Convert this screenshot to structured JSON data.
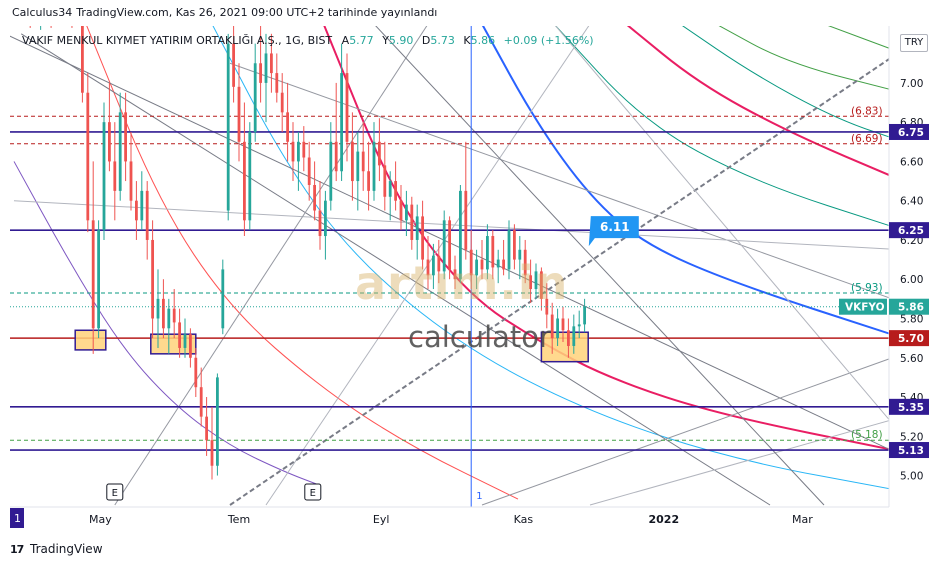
{
  "header": {
    "publish_author": "Calculus34",
    "publish_line": "TradingView.com, Kas 26, 2021 09:00 UTC+2 tarihinde yayınlandı"
  },
  "legend": {
    "symbol": "VAKIF MENKUL KIYMET YATIRIM ORTAKLIĞI A.Ş., 1G, BIST",
    "open_label": "A",
    "open": "5.77",
    "high_label": "Y",
    "high": "5.90",
    "low_label": "D",
    "low": "5.73",
    "close_label": "K",
    "close": "5.86",
    "change": "+0.09 (+1.56%)"
  },
  "currency": "TRY",
  "footer": {
    "brand": "TradingView"
  },
  "watermark": {
    "line1": "artım.in",
    "line2": "calculator"
  },
  "colors": {
    "up": "#26a69a",
    "down": "#ef5350",
    "level": "#311b92",
    "level_red": "#b71c1c",
    "fib_red": "#e91e63",
    "fib_blue": "#2962ff",
    "fib_teal": "#089981",
    "fib_green": "#43a047"
  },
  "chart_data": {
    "type": "candlestick",
    "currency": "TRY",
    "ylim": [
      4.85,
      7.3
    ],
    "y_ticks": [
      5.0,
      5.2,
      5.4,
      5.6,
      5.8,
      6.0,
      6.2,
      6.4,
      6.6,
      6.8,
      7.0,
      7.2
    ],
    "x_ticks": [
      {
        "label": "1",
        "x": 0.0
      },
      {
        "label": "May",
        "x": 24.0
      },
      {
        "label": "Tem",
        "x": 62.5
      },
      {
        "label": "Eyl",
        "x": 102.0
      },
      {
        "label": "Kas",
        "x": 141.5
      },
      {
        "label": "2022",
        "x": 180.5
      },
      {
        "label": "Mar",
        "x": 219.0
      }
    ],
    "x_range": [
      0,
      247
    ],
    "levels": [
      {
        "value": 6.75,
        "label": "6.75",
        "style": "solid",
        "color": "#311b92"
      },
      {
        "value": 6.25,
        "label": "6.25",
        "style": "solid",
        "color": "#311b92"
      },
      {
        "value": 5.7,
        "label": "5.70",
        "style": "solid",
        "color": "#b71c1c"
      },
      {
        "value": 5.35,
        "label": "5.35",
        "style": "solid",
        "color": "#311b92"
      },
      {
        "value": 5.13,
        "label": "5.13",
        "style": "solid",
        "color": "#311b92"
      },
      {
        "value": 6.83,
        "label": "(6.83)",
        "style": "dashed",
        "color": "#b71c1c"
      },
      {
        "value": 6.69,
        "label": "(6.69)",
        "style": "dashed",
        "color": "#b71c1c"
      },
      {
        "value": 5.93,
        "label": "(5.93)",
        "style": "dashed",
        "color": "#089981"
      },
      {
        "value": 5.18,
        "label": "(5.18)",
        "style": "dashed",
        "color": "#43a047"
      }
    ],
    "last_price": {
      "label": "VKFYO",
      "value": 5.86
    },
    "callout": {
      "label": "6.11",
      "x": 168,
      "y": 6.25
    },
    "boxes": [
      {
        "x0": 17,
        "x1": 25.5,
        "y0": 5.64,
        "y1": 5.74
      },
      {
        "x0": 38,
        "x1": 50.5,
        "y0": 5.62,
        "y1": 5.72
      },
      {
        "x0": 146.5,
        "x1": 159.5,
        "y0": 5.58,
        "y1": 5.73
      }
    ],
    "event_markers": [
      {
        "label": "E",
        "x": 28
      },
      {
        "label": "E",
        "x": 83
      }
    ],
    "vertical_marker": {
      "label": "1",
      "x": 127
    },
    "candles": [
      {
        "x": 4.5,
        "o": 7.35,
        "h": 7.35,
        "l": 7.28,
        "c": 7.31
      },
      {
        "x": 7.4,
        "o": 7.29,
        "h": 7.34,
        "l": 7.27,
        "c": 7.32
      },
      {
        "x": 10.3,
        "o": 7.33,
        "h": 7.35,
        "l": 7.28,
        "c": 7.3
      },
      {
        "x": 13.2,
        "o": 7.31,
        "h": 7.36,
        "l": 7.29,
        "c": 7.34
      },
      {
        "x": 16.1,
        "o": 7.34,
        "h": 7.35,
        "l": 7.28,
        "c": 7.3
      },
      {
        "x": 19.0,
        "o": 7.3,
        "h": 7.33,
        "l": 6.9,
        "c": 6.95
      },
      {
        "x": 20.5,
        "o": 6.95,
        "h": 7.05,
        "l": 6.24,
        "c": 6.3
      },
      {
        "x": 22.0,
        "o": 6.3,
        "h": 6.6,
        "l": 5.62,
        "c": 5.75
      },
      {
        "x": 23.5,
        "o": 5.75,
        "h": 6.3,
        "l": 5.7,
        "c": 6.25
      },
      {
        "x": 25.0,
        "o": 6.25,
        "h": 6.9,
        "l": 6.2,
        "c": 6.8
      },
      {
        "x": 26.5,
        "o": 6.8,
        "h": 7.0,
        "l": 6.55,
        "c": 6.6
      },
      {
        "x": 28.0,
        "o": 6.6,
        "h": 6.8,
        "l": 6.3,
        "c": 6.45
      },
      {
        "x": 29.5,
        "o": 6.45,
        "h": 6.95,
        "l": 6.4,
        "c": 6.85
      },
      {
        "x": 31.0,
        "o": 6.85,
        "h": 6.95,
        "l": 6.5,
        "c": 6.6
      },
      {
        "x": 32.5,
        "o": 6.6,
        "h": 6.75,
        "l": 6.35,
        "c": 6.4
      },
      {
        "x": 34.0,
        "o": 6.4,
        "h": 6.5,
        "l": 6.2,
        "c": 6.3
      },
      {
        "x": 35.5,
        "o": 6.3,
        "h": 6.55,
        "l": 6.25,
        "c": 6.45
      },
      {
        "x": 37.0,
        "o": 6.45,
        "h": 6.5,
        "l": 6.1,
        "c": 6.2
      },
      {
        "x": 38.5,
        "o": 6.2,
        "h": 6.3,
        "l": 5.7,
        "c": 5.8
      },
      {
        "x": 40.0,
        "o": 5.8,
        "h": 6.05,
        "l": 5.65,
        "c": 5.9
      },
      {
        "x": 41.5,
        "o": 5.9,
        "h": 6.0,
        "l": 5.7,
        "c": 5.75
      },
      {
        "x": 43.0,
        "o": 5.75,
        "h": 5.9,
        "l": 5.62,
        "c": 5.85
      },
      {
        "x": 44.5,
        "o": 5.85,
        "h": 5.95,
        "l": 5.7,
        "c": 5.78
      },
      {
        "x": 46.0,
        "o": 5.78,
        "h": 5.85,
        "l": 5.6,
        "c": 5.65
      },
      {
        "x": 47.5,
        "o": 5.65,
        "h": 5.8,
        "l": 5.6,
        "c": 5.72
      },
      {
        "x": 49.0,
        "o": 5.72,
        "h": 5.75,
        "l": 5.55,
        "c": 5.6
      },
      {
        "x": 50.5,
        "o": 5.6,
        "h": 5.65,
        "l": 5.4,
        "c": 5.45
      },
      {
        "x": 52.0,
        "o": 5.45,
        "h": 5.55,
        "l": 5.25,
        "c": 5.3
      },
      {
        "x": 53.5,
        "o": 5.3,
        "h": 5.4,
        "l": 5.1,
        "c": 5.18
      },
      {
        "x": 55.0,
        "o": 5.18,
        "h": 5.35,
        "l": 4.98,
        "c": 5.05
      },
      {
        "x": 56.5,
        "o": 5.05,
        "h": 5.52,
        "l": 5.0,
        "c": 5.5
      },
      {
        "x": 58.0,
        "o": 5.75,
        "h": 6.1,
        "l": 5.72,
        "c": 6.05
      },
      {
        "x": 59.5,
        "o": 6.35,
        "h": 7.25,
        "l": 6.3,
        "c": 7.2
      },
      {
        "x": 61.0,
        "o": 7.2,
        "h": 7.3,
        "l": 6.9,
        "c": 6.98
      },
      {
        "x": 62.5,
        "o": 6.98,
        "h": 7.1,
        "l": 6.6,
        "c": 6.7
      },
      {
        "x": 64.0,
        "o": 6.7,
        "h": 6.9,
        "l": 6.22,
        "c": 6.3
      },
      {
        "x": 65.5,
        "o": 6.3,
        "h": 6.8,
        "l": 6.25,
        "c": 6.75
      },
      {
        "x": 67.0,
        "o": 6.75,
        "h": 7.2,
        "l": 6.7,
        "c": 7.1
      },
      {
        "x": 68.5,
        "o": 7.1,
        "h": 7.3,
        "l": 6.9,
        "c": 7.0
      },
      {
        "x": 70.0,
        "o": 7.0,
        "h": 7.25,
        "l": 6.8,
        "c": 7.15
      },
      {
        "x": 71.5,
        "o": 7.15,
        "h": 7.25,
        "l": 6.95,
        "c": 7.05
      },
      {
        "x": 73.0,
        "o": 7.05,
        "h": 7.15,
        "l": 6.9,
        "c": 6.95
      },
      {
        "x": 74.5,
        "o": 6.95,
        "h": 7.05,
        "l": 6.75,
        "c": 6.85
      },
      {
        "x": 76.0,
        "o": 6.85,
        "h": 7.0,
        "l": 6.6,
        "c": 6.7
      },
      {
        "x": 77.5,
        "o": 6.7,
        "h": 6.8,
        "l": 6.5,
        "c": 6.6
      },
      {
        "x": 79.0,
        "o": 6.6,
        "h": 6.75,
        "l": 6.45,
        "c": 6.7
      },
      {
        "x": 80.5,
        "o": 6.7,
        "h": 6.78,
        "l": 6.55,
        "c": 6.62
      },
      {
        "x": 82.0,
        "o": 6.62,
        "h": 6.7,
        "l": 6.4,
        "c": 6.48
      },
      {
        "x": 83.5,
        "o": 6.48,
        "h": 6.6,
        "l": 6.3,
        "c": 6.35
      },
      {
        "x": 85.0,
        "o": 6.35,
        "h": 6.5,
        "l": 6.15,
        "c": 6.22
      },
      {
        "x": 86.5,
        "o": 6.22,
        "h": 6.45,
        "l": 6.1,
        "c": 6.4
      },
      {
        "x": 88.0,
        "o": 6.4,
        "h": 6.8,
        "l": 6.35,
        "c": 6.7
      },
      {
        "x": 89.5,
        "o": 6.7,
        "h": 7.0,
        "l": 6.5,
        "c": 6.55
      },
      {
        "x": 91.0,
        "o": 6.55,
        "h": 7.2,
        "l": 6.5,
        "c": 7.05
      },
      {
        "x": 92.5,
        "o": 7.05,
        "h": 7.15,
        "l": 6.6,
        "c": 6.7
      },
      {
        "x": 94.0,
        "o": 6.7,
        "h": 6.85,
        "l": 6.4,
        "c": 6.5
      },
      {
        "x": 95.5,
        "o": 6.5,
        "h": 6.75,
        "l": 6.35,
        "c": 6.65
      },
      {
        "x": 97.0,
        "o": 6.65,
        "h": 6.8,
        "l": 6.45,
        "c": 6.55
      },
      {
        "x": 98.5,
        "o": 6.55,
        "h": 6.7,
        "l": 6.35,
        "c": 6.45
      },
      {
        "x": 100.0,
        "o": 6.45,
        "h": 6.8,
        "l": 6.4,
        "c": 6.7
      },
      {
        "x": 101.5,
        "o": 6.7,
        "h": 6.82,
        "l": 6.5,
        "c": 6.58
      },
      {
        "x": 103.0,
        "o": 6.58,
        "h": 6.7,
        "l": 6.35,
        "c": 6.42
      },
      {
        "x": 104.5,
        "o": 6.42,
        "h": 6.55,
        "l": 6.3,
        "c": 6.5
      },
      {
        "x": 106.0,
        "o": 6.5,
        "h": 6.6,
        "l": 6.35,
        "c": 6.4
      },
      {
        "x": 107.5,
        "o": 6.4,
        "h": 6.48,
        "l": 6.25,
        "c": 6.3
      },
      {
        "x": 109.0,
        "o": 6.3,
        "h": 6.45,
        "l": 6.22,
        "c": 6.38
      },
      {
        "x": 110.5,
        "o": 6.38,
        "h": 6.42,
        "l": 6.15,
        "c": 6.2
      },
      {
        "x": 112.0,
        "o": 6.2,
        "h": 6.38,
        "l": 6.1,
        "c": 6.32
      },
      {
        "x": 113.5,
        "o": 6.32,
        "h": 6.4,
        "l": 6.05,
        "c": 6.1
      },
      {
        "x": 115.0,
        "o": 6.1,
        "h": 6.22,
        "l": 5.95,
        "c": 6.02
      },
      {
        "x": 116.5,
        "o": 6.02,
        "h": 6.18,
        "l": 5.95,
        "c": 6.12
      },
      {
        "x": 118.0,
        "o": 6.12,
        "h": 6.2,
        "l": 5.98,
        "c": 6.04
      },
      {
        "x": 119.5,
        "o": 6.04,
        "h": 6.35,
        "l": 6.0,
        "c": 6.3
      },
      {
        "x": 121.0,
        "o": 6.3,
        "h": 6.32,
        "l": 6.0,
        "c": 6.05
      },
      {
        "x": 122.5,
        "o": 6.05,
        "h": 6.12,
        "l": 5.95,
        "c": 6.0
      },
      {
        "x": 124.0,
        "o": 6.0,
        "h": 6.48,
        "l": 5.98,
        "c": 6.45
      },
      {
        "x": 125.5,
        "o": 6.45,
        "h": 6.7,
        "l": 6.1,
        "c": 6.15
      },
      {
        "x": 127.0,
        "o": 6.15,
        "h": 6.25,
        "l": 5.95,
        "c": 6.02
      },
      {
        "x": 128.5,
        "o": 6.02,
        "h": 6.15,
        "l": 5.95,
        "c": 6.1
      },
      {
        "x": 130.0,
        "o": 6.1,
        "h": 6.2,
        "l": 6.0,
        "c": 6.05
      },
      {
        "x": 131.5,
        "o": 6.05,
        "h": 6.28,
        "l": 6.0,
        "c": 6.22
      },
      {
        "x": 133.0,
        "o": 6.22,
        "h": 6.25,
        "l": 6.0,
        "c": 6.06
      },
      {
        "x": 134.5,
        "o": 6.06,
        "h": 6.15,
        "l": 5.98,
        "c": 6.1
      },
      {
        "x": 136.0,
        "o": 6.1,
        "h": 6.2,
        "l": 6.02,
        "c": 6.05
      },
      {
        "x": 137.5,
        "o": 6.05,
        "h": 6.3,
        "l": 6.0,
        "c": 6.25
      },
      {
        "x": 139.0,
        "o": 6.25,
        "h": 6.28,
        "l": 6.05,
        "c": 6.1
      },
      {
        "x": 140.5,
        "o": 6.1,
        "h": 6.22,
        "l": 6.0,
        "c": 6.15
      },
      {
        "x": 142.0,
        "o": 6.15,
        "h": 6.2,
        "l": 5.98,
        "c": 6.02
      },
      {
        "x": 143.5,
        "o": 6.02,
        "h": 6.1,
        "l": 5.88,
        "c": 5.95
      },
      {
        "x": 145.0,
        "o": 5.95,
        "h": 6.08,
        "l": 5.9,
        "c": 6.04
      },
      {
        "x": 146.5,
        "o": 6.04,
        "h": 6.06,
        "l": 5.84,
        "c": 5.9
      },
      {
        "x": 148.0,
        "o": 5.9,
        "h": 5.98,
        "l": 5.75,
        "c": 5.82
      },
      {
        "x": 149.5,
        "o": 5.82,
        "h": 5.88,
        "l": 5.62,
        "c": 5.7
      },
      {
        "x": 151.0,
        "o": 5.7,
        "h": 5.85,
        "l": 5.66,
        "c": 5.8
      },
      {
        "x": 152.5,
        "o": 5.8,
        "h": 5.86,
        "l": 5.68,
        "c": 5.74
      },
      {
        "x": 154.0,
        "o": 5.74,
        "h": 5.8,
        "l": 5.6,
        "c": 5.66
      },
      {
        "x": 155.5,
        "o": 5.66,
        "h": 5.82,
        "l": 5.62,
        "c": 5.76
      },
      {
        "x": 157.0,
        "o": 5.76,
        "h": 5.84,
        "l": 5.7,
        "c": 5.77
      },
      {
        "x": 158.5,
        "o": 5.77,
        "h": 5.9,
        "l": 5.73,
        "c": 5.86
      }
    ],
    "lines": [
      {
        "x0": -6,
        "y0": 7.28,
        "x1": 247,
        "y1": 5.1,
        "color": "#787b86",
        "w": 1
      },
      {
        "x0": 2,
        "y0": 7.25,
        "x1": 210,
        "y1": 4.85,
        "color": "#787b86",
        "w": 1
      },
      {
        "x0": 60,
        "y0": 7.1,
        "x1": 247,
        "y1": 5.88,
        "color": "#9598a1",
        "w": 1
      },
      {
        "x0": 0,
        "y0": 6.4,
        "x1": 247,
        "y1": 6.15,
        "color": "#b2b5be",
        "w": 1
      },
      {
        "x0": 28,
        "y0": 4.85,
        "x1": 115,
        "y1": 7.3,
        "color": "#9598a1",
        "w": 1
      },
      {
        "x0": 70,
        "y0": 4.85,
        "x1": 160,
        "y1": 7.3,
        "color": "#b2b5be",
        "w": 1
      },
      {
        "x0": 60,
        "y0": 4.85,
        "x1": 247,
        "y1": 7.17,
        "color": "#787b86",
        "w": 2,
        "dash": true
      },
      {
        "x0": 130,
        "y0": 4.85,
        "x1": 247,
        "y1": 5.62,
        "color": "#9598a1",
        "w": 1
      },
      {
        "x0": 160,
        "y0": 4.85,
        "x1": 247,
        "y1": 5.3,
        "color": "#b2b5be",
        "w": 1
      },
      {
        "x0": 100,
        "y0": 7.3,
        "x1": 225,
        "y1": 4.85,
        "color": "#787b86",
        "w": 1
      },
      {
        "x0": 150,
        "y0": 7.3,
        "x1": 247,
        "y1": 5.2,
        "color": "#b2b5be",
        "w": 1
      }
    ],
    "arcs": [
      {
        "color": "#e91e63",
        "w": 2,
        "pts": [
          [
            86,
            7.3
          ],
          [
            106,
            6.4
          ],
          [
            126,
            5.92
          ],
          [
            146,
            5.68
          ],
          [
            166,
            5.49
          ],
          [
            196,
            5.31
          ],
          [
            247,
            5.12
          ]
        ]
      },
      {
        "color": "#2962ff",
        "w": 2,
        "pts": [
          [
            130,
            7.3
          ],
          [
            145,
            6.8
          ],
          [
            160,
            6.42
          ],
          [
            175,
            6.18
          ],
          [
            200,
            5.98
          ],
          [
            247,
            5.7
          ]
        ]
      },
      {
        "color": "#e91e63",
        "w": 2,
        "pts": [
          [
            170,
            7.3
          ],
          [
            190,
            7.0
          ],
          [
            215,
            6.75
          ],
          [
            247,
            6.5
          ]
        ]
      },
      {
        "color": "#089981",
        "w": 1,
        "pts": [
          [
            185,
            7.3
          ],
          [
            205,
            7.05
          ],
          [
            228,
            6.82
          ],
          [
            247,
            6.7
          ]
        ]
      },
      {
        "color": "#089981",
        "w": 1,
        "pts": [
          [
            150,
            7.3
          ],
          [
            175,
            6.8
          ],
          [
            205,
            6.5
          ],
          [
            247,
            6.25
          ]
        ]
      },
      {
        "color": "#43a047",
        "w": 1,
        "pts": [
          [
            195,
            7.3
          ],
          [
            215,
            7.1
          ],
          [
            247,
            6.95
          ]
        ]
      },
      {
        "color": "#43a047",
        "w": 1,
        "pts": [
          [
            225,
            7.3
          ],
          [
            247,
            7.15
          ]
        ]
      },
      {
        "color": "#29b6f6",
        "w": 1,
        "pts": [
          [
            55,
            7.3
          ],
          [
            75,
            6.6
          ],
          [
            95,
            6.1
          ],
          [
            125,
            5.65
          ],
          [
            160,
            5.32
          ],
          [
            200,
            5.08
          ],
          [
            247,
            4.92
          ]
        ]
      },
      {
        "color": "#ff5252",
        "w": 1,
        "pts": [
          [
            20,
            7.3
          ],
          [
            40,
            6.4
          ],
          [
            60,
            5.85
          ],
          [
            85,
            5.45
          ],
          [
            110,
            5.15
          ],
          [
            140,
            4.88
          ]
        ]
      },
      {
        "color": "#7e57c2",
        "w": 1,
        "pts": [
          [
            0,
            6.6
          ],
          [
            15,
            6.1
          ],
          [
            30,
            5.65
          ],
          [
            45,
            5.35
          ],
          [
            60,
            5.15
          ],
          [
            75,
            5.02
          ],
          [
            85,
            4.95
          ]
        ]
      }
    ]
  }
}
